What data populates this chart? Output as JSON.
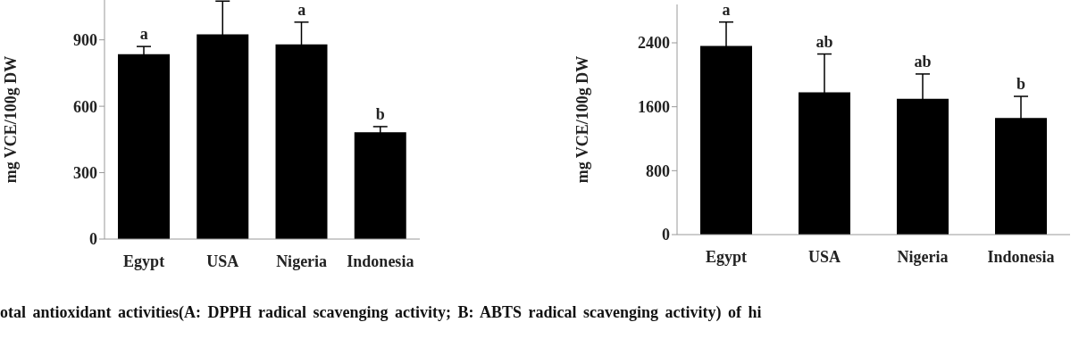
{
  "chart_data": [
    {
      "type": "bar",
      "ylabel": "mg VCE/100g DW",
      "categories": [
        "Egypt",
        "USA",
        "Nigeria",
        "Indonesia"
      ],
      "values": [
        835,
        925,
        880,
        483
      ],
      "errors": [
        35,
        150,
        100,
        25
      ],
      "color": "#000000",
      "ylim": [
        0,
        1080
      ],
      "yticks": [
        0,
        300,
        600,
        900
      ],
      "grid": false,
      "annotations": [
        {
          "text": "a",
          "x": "Egypt",
          "y": 870
        },
        {
          "text": "a",
          "x": "Nigeria",
          "y": 980
        },
        {
          "text": "b",
          "x": "Indonesia",
          "y": 508
        },
        "otal antioxidant activities(A: DPPH radical scavenging activity; B: ABTS radical scavenging activity) of hi"
      ]
    },
    {
      "type": "bar",
      "ylabel": "mg VCE/100g DW",
      "categories": [
        "Egypt",
        "USA",
        "Nigeria",
        "Indonesia"
      ],
      "values": [
        2360,
        1780,
        1700,
        1460
      ],
      "errors": [
        300,
        480,
        310,
        270
      ],
      "color": "#000000",
      "ylim": [
        0,
        2880
      ],
      "yticks": [
        0,
        800,
        1600,
        2400
      ],
      "grid": false,
      "annotations": [
        {
          "text": "a",
          "x": "Egypt",
          "y": 2660
        },
        {
          "text": "ab",
          "x": "USA",
          "y": 2260
        },
        {
          "text": "ab",
          "x": "Nigeria",
          "y": 2010
        },
        {
          "text": "b",
          "x": "Indonesia",
          "y": 1730
        }
      ]
    }
  ]
}
